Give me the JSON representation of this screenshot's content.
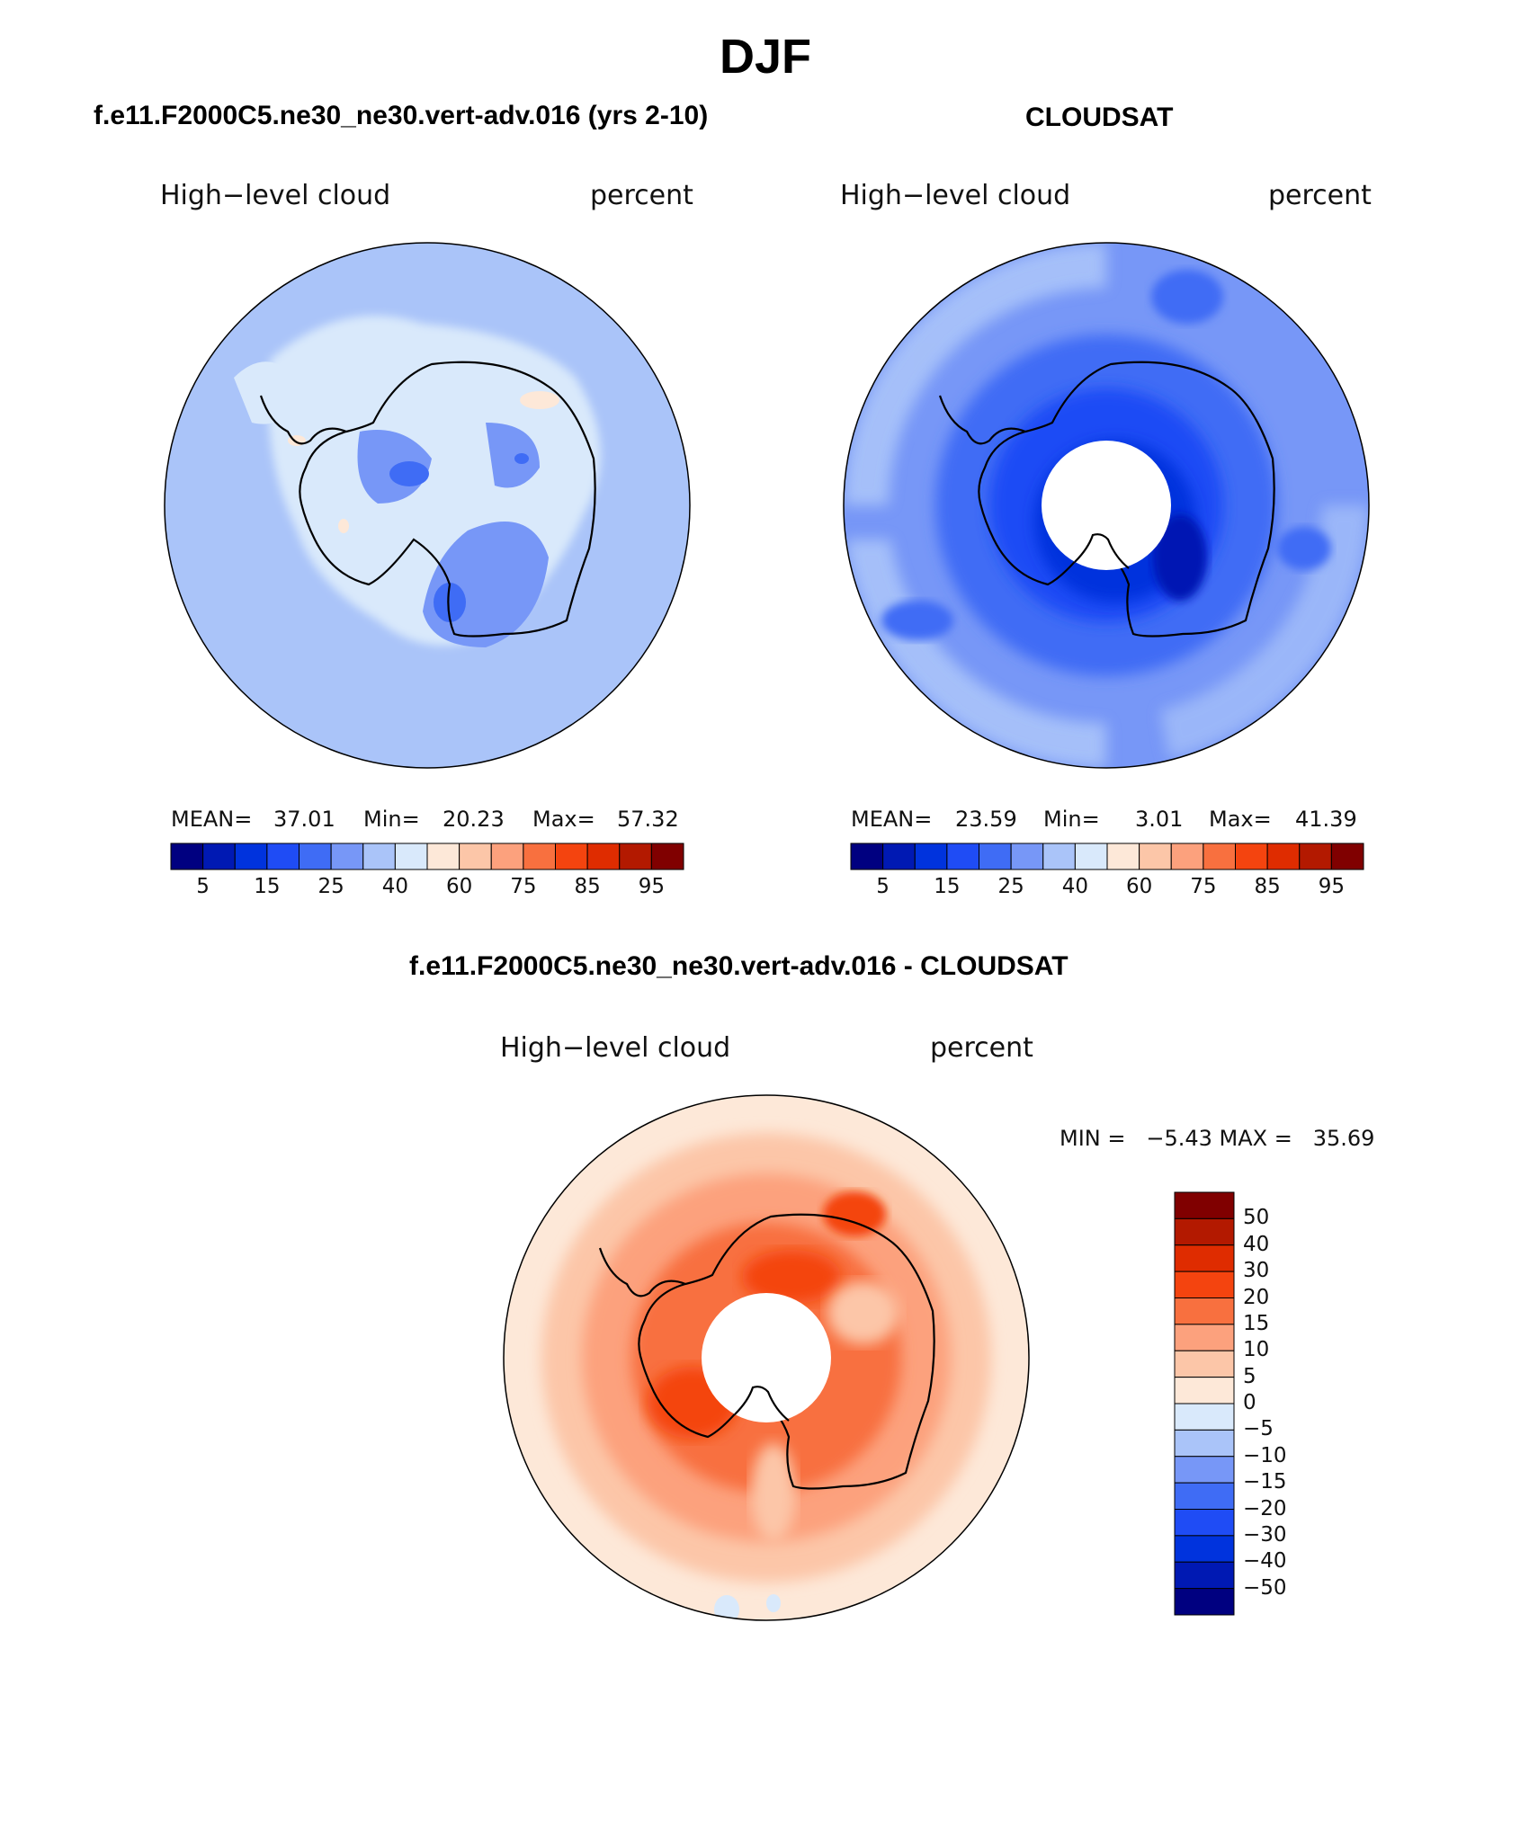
{
  "page_title": "DJF",
  "colors": {
    "seq": [
      "#000080",
      "#0019b3",
      "#0033dd",
      "#1f4cf5",
      "#3f6cf5",
      "#7797f7",
      "#aac4f9",
      "#d9e9fb",
      "#fde8d8",
      "#fcc6a8",
      "#fca17d",
      "#f8703f",
      "#f4440f",
      "#df2c00",
      "#b31900",
      "#800000"
    ],
    "diff": [
      "#000080",
      "#0019b3",
      "#0033dd",
      "#1f4cf5",
      "#3f6cf5",
      "#7797f7",
      "#aac4f9",
      "#d9e9fb",
      "#fde8d8",
      "#fcc6a8",
      "#fca17d",
      "#f8703f",
      "#f4440f",
      "#df2c00",
      "#b31900",
      "#800000"
    ],
    "coast": "#000000"
  },
  "panels": {
    "model": {
      "title": "f.e11.F2000C5.ne30_ne30.vert-adv.016 (yrs 2-10)",
      "field": "High−level cloud",
      "units": "percent",
      "mean_label": "MEAN=",
      "mean": "37.01",
      "min_label": "Min=",
      "min": "20.23",
      "max_label": "Max=",
      "max": "57.32"
    },
    "obs": {
      "title": "CLOUDSAT",
      "field": "High−level cloud",
      "units": "percent",
      "mean_label": "MEAN=",
      "mean": "23.59",
      "min_label": "Min=",
      "min": "3.01",
      "max_label": "Max=",
      "max": "41.39"
    },
    "diff": {
      "title": "f.e11.F2000C5.ne30_ne30.vert-adv.016 - CLOUDSAT",
      "field": "High−level cloud",
      "units": "percent",
      "minmax_text": "MIN =   −5.43 MAX =   35.69"
    }
  },
  "colorbar_ticks": [
    "5",
    "15",
    "25",
    "40",
    "60",
    "75",
    "85",
    "95"
  ],
  "diff_ticks": [
    "50",
    "40",
    "30",
    "20",
    "15",
    "10",
    "5",
    "0",
    "−5",
    "−10",
    "−15",
    "−20",
    "−30",
    "−40",
    "−50"
  ]
}
